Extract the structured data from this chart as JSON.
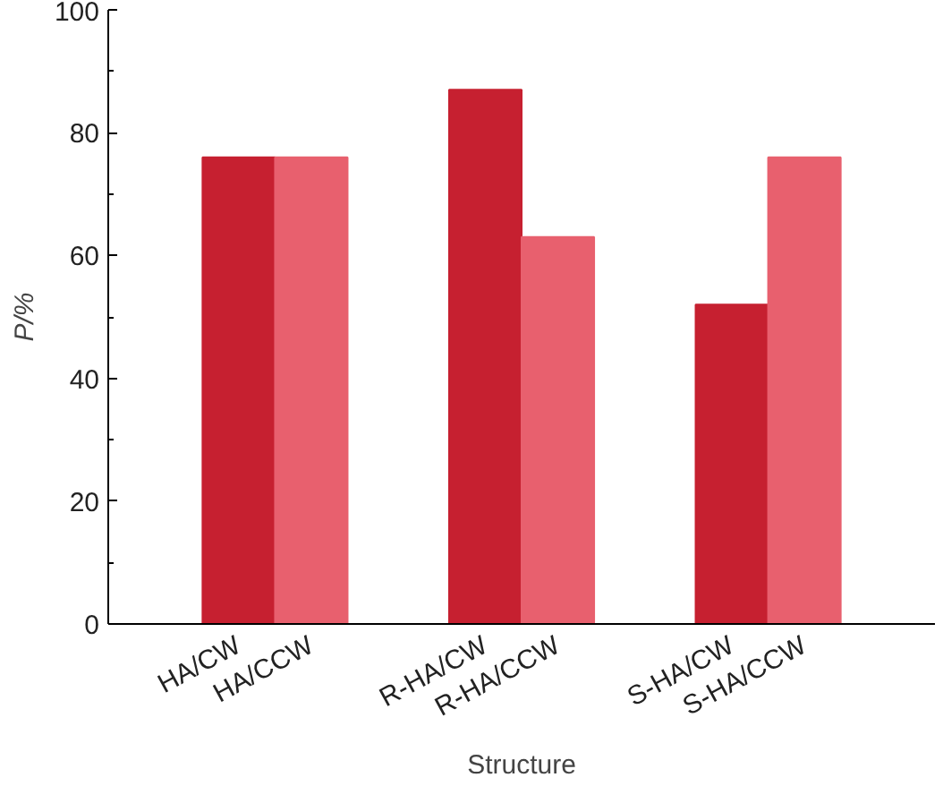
{
  "chart_data": {
    "type": "bar",
    "xlabel": "Structure",
    "ylabel": "P/%",
    "categories": [
      "HA/CW",
      "HA/CCW",
      "R-HA/CW",
      "R-HA/CCW",
      "S-HA/CW",
      "S-HA/CCW"
    ],
    "values": [
      76,
      76,
      87,
      63,
      52,
      76
    ],
    "colors": [
      "#c62030",
      "#e8606e",
      "#c62030",
      "#e8606e",
      "#c62030",
      "#e8606e"
    ],
    "ylim": [
      0,
      100
    ],
    "yticks": [
      0,
      20,
      40,
      60,
      80,
      100
    ],
    "grid": false
  }
}
